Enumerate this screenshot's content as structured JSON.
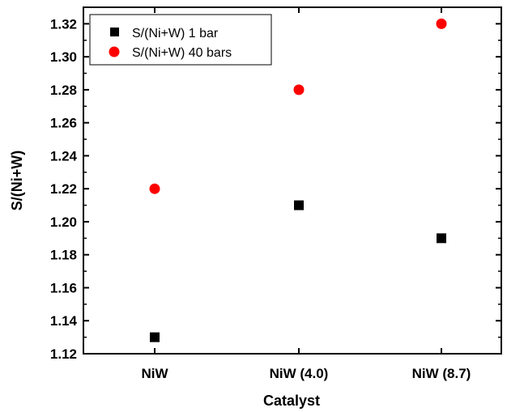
{
  "chart_data": {
    "type": "scatter",
    "title": "",
    "xlabel": "Catalyst",
    "ylabel": "S/(Ni+W)",
    "categories": [
      "NiW",
      "NiW (4.0)",
      "NiW (8.7)"
    ],
    "ylim": [
      1.12,
      1.33
    ],
    "yticks": [
      "1.12",
      "1.14",
      "1.16",
      "1.18",
      "1.20",
      "1.22",
      "1.24",
      "1.26",
      "1.28",
      "1.30",
      "1.32"
    ],
    "grid": false,
    "legend_position": "top-left",
    "series": [
      {
        "name": "S/(Ni+W) 1 bar",
        "marker": "square",
        "color": "#000000",
        "values": [
          1.13,
          1.21,
          1.19
        ]
      },
      {
        "name": "S/(Ni+W) 40 bars",
        "marker": "circle",
        "color": "#ff0000",
        "values": [
          1.22,
          1.28,
          1.32
        ]
      }
    ]
  }
}
